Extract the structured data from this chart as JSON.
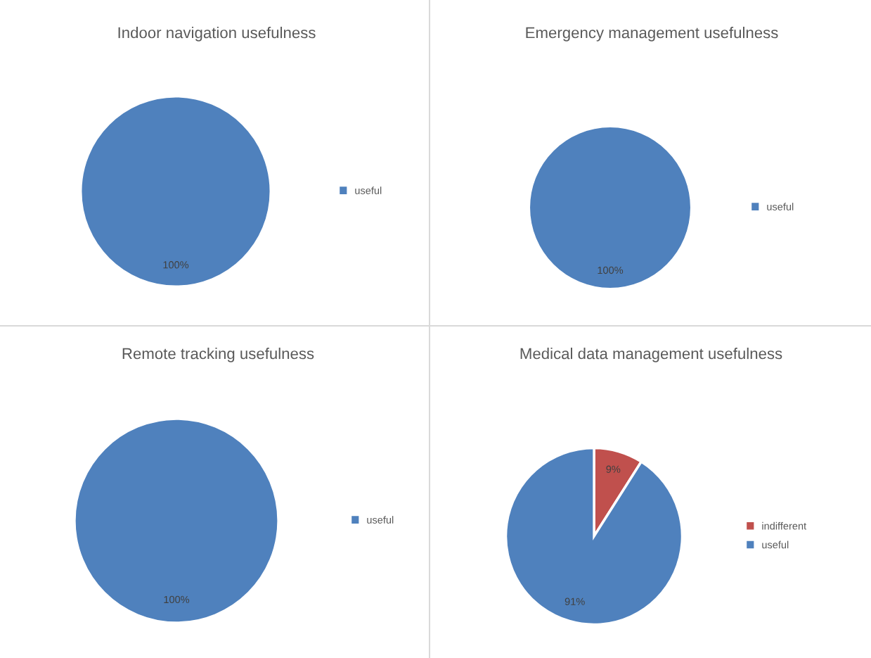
{
  "chart_data": [
    {
      "type": "pie",
      "title": "Indoor navigation usefulness",
      "categories": [
        "useful"
      ],
      "values": [
        100
      ],
      "colors": [
        "#4f81bd"
      ],
      "value_labels": [
        "100%"
      ],
      "legend": "right"
    },
    {
      "type": "pie",
      "title": "Emergency management usefulness",
      "categories": [
        "useful"
      ],
      "values": [
        100
      ],
      "colors": [
        "#4f81bd"
      ],
      "value_labels": [
        "100%"
      ],
      "legend": "right"
    },
    {
      "type": "pie",
      "title": "Remote tracking usefulness",
      "categories": [
        "useful"
      ],
      "values": [
        100
      ],
      "colors": [
        "#4f81bd"
      ],
      "value_labels": [
        "100%"
      ],
      "legend": "right"
    },
    {
      "type": "pie",
      "title": "Medical data management usefulness",
      "categories": [
        "indifferent",
        "useful"
      ],
      "values": [
        9,
        91
      ],
      "colors": [
        "#c0504d",
        "#4f81bd"
      ],
      "value_labels": [
        "9%",
        "91%"
      ],
      "legend": "right"
    }
  ]
}
